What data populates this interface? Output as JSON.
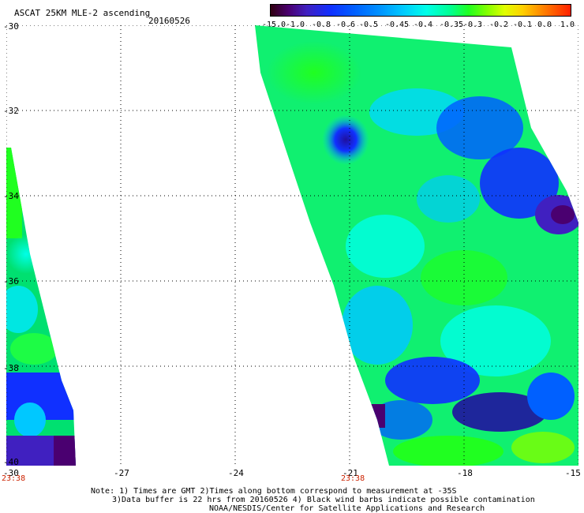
{
  "header": {
    "title": "ASCAT 25KM MLE-2 ascending",
    "date": "20160526"
  },
  "legend": {
    "labels": [
      "-15.0",
      "-1.0",
      "-0.8",
      "-0.6",
      "-0.5",
      "-0.45",
      "-0.4",
      "-0.35",
      "-0.3",
      "-0.2",
      "-0.1",
      "0.0",
      "1.0"
    ]
  },
  "axes": {
    "y_labels": [
      "-30",
      "-32",
      "-34",
      "-36",
      "-38",
      "-40"
    ],
    "x_labels": [
      "-30",
      "-27",
      "-24",
      "-21",
      "-18",
      "-15"
    ]
  },
  "swath_times": [
    "23:38",
    "23:38"
  ],
  "notes": [
    "Note: 1) Times are GMT 2)Times along bottom correspond to measurement at -35S",
    "3)Data buffer is 22 hrs from 20160526 4) Black wind barbs indicate possible contamination",
    "NOAA/NESDIS/Center for Satellite Applications and Research"
  ],
  "colors": {
    "low": "#300010",
    "mid_low": "#1030ff",
    "mid": "#00ffe8",
    "mid_high": "#20ff20",
    "high": "#ff2000"
  }
}
